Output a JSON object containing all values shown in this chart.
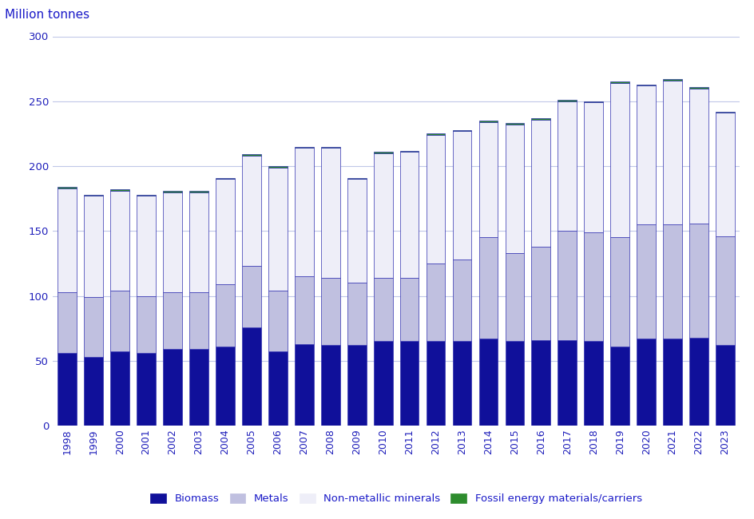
{
  "years": [
    1998,
    1999,
    2000,
    2001,
    2002,
    2003,
    2004,
    2005,
    2006,
    2007,
    2008,
    2009,
    2010,
    2011,
    2012,
    2013,
    2014,
    2015,
    2016,
    2017,
    2018,
    2019,
    2020,
    2021,
    2022,
    2023
  ],
  "biomass": [
    56,
    53,
    57,
    56,
    59,
    59,
    61,
    76,
    57,
    63,
    62,
    62,
    65,
    65,
    65,
    65,
    67,
    65,
    66,
    66,
    65,
    61,
    67,
    67,
    68,
    62
  ],
  "metals": [
    47,
    46,
    47,
    44,
    44,
    44,
    48,
    47,
    47,
    52,
    52,
    48,
    49,
    49,
    60,
    63,
    78,
    68,
    72,
    84,
    84,
    84,
    88,
    88,
    88,
    84
  ],
  "non_metallic": [
    80,
    78,
    77,
    77,
    77,
    77,
    81,
    85,
    95,
    99,
    100,
    80,
    96,
    97,
    99,
    99,
    89,
    99,
    98,
    100,
    100,
    119,
    107,
    111,
    104,
    95
  ],
  "fossil": [
    1,
    1,
    1,
    1,
    1,
    1,
    1,
    1,
    1,
    1,
    1,
    1,
    1,
    1,
    1,
    1,
    1,
    1,
    1,
    1,
    1,
    1,
    1,
    1,
    1,
    1
  ],
  "color_biomass": "#10109a",
  "color_metals": "#c0c0e0",
  "color_non_metallic": "#eeeef8",
  "color_fossil": "#2d8c2d",
  "ylabel": "Million tonnes",
  "ylim": [
    0,
    300
  ],
  "yticks": [
    0,
    50,
    100,
    150,
    200,
    250,
    300
  ],
  "background_color": "#ffffff",
  "bar_edge_color": "#3030b0",
  "bar_edge_width": 0.5,
  "legend_labels": [
    "Biomass",
    "Metals",
    "Non-metallic minerals",
    "Fossil energy materials/carriers"
  ],
  "title_color": "#1a1ac8",
  "axis_color": "#2020bb",
  "grid_color": "#c0c8e8"
}
